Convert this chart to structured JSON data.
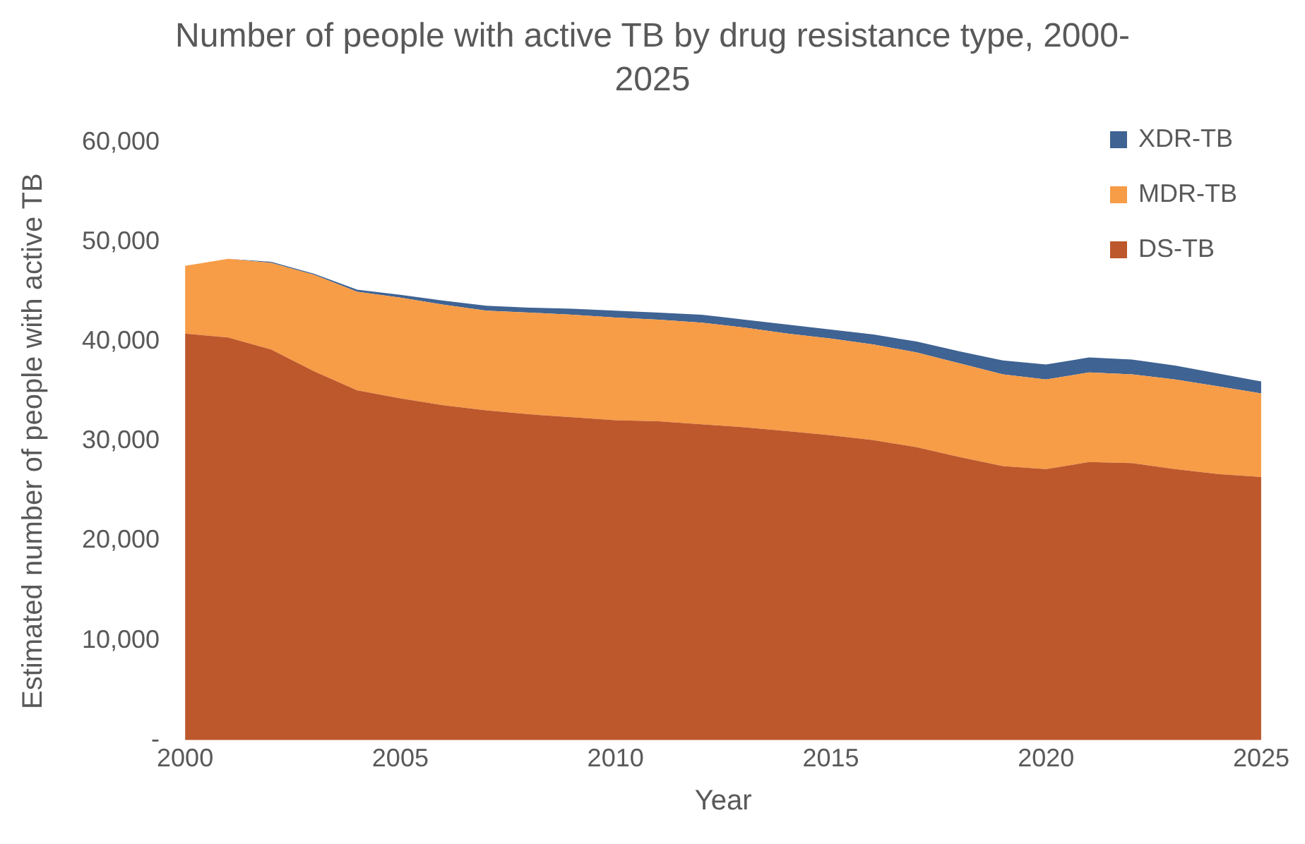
{
  "chart_data": {
    "type": "area",
    "title": "Number of people with active TB by drug resistance type, 2000-2025",
    "xlabel": "Year",
    "ylabel": "Estimated number of people with active TB",
    "stacked": true,
    "x": [
      2000,
      2001,
      2002,
      2003,
      2004,
      2005,
      2006,
      2007,
      2008,
      2009,
      2010,
      2011,
      2012,
      2013,
      2014,
      2015,
      2016,
      2017,
      2018,
      2019,
      2020,
      2021,
      2022,
      2023,
      2024,
      2025
    ],
    "series": [
      {
        "name": "DS-TB",
        "color": "#bd582c",
        "values": [
          40800,
          40400,
          39200,
          37000,
          35100,
          34300,
          33600,
          33100,
          32700,
          32400,
          32100,
          32000,
          31700,
          31400,
          31000,
          30600,
          30100,
          29400,
          28400,
          27500,
          27200,
          27900,
          27800,
          27200,
          26700,
          26400
        ]
      },
      {
        "name": "MDR-TB",
        "color": "#f79c47",
        "values": [
          6800,
          7900,
          8700,
          9700,
          9900,
          10100,
          10100,
          10000,
          10200,
          10300,
          10300,
          10200,
          10200,
          10000,
          9800,
          9700,
          9600,
          9500,
          9400,
          9200,
          9000,
          9000,
          8900,
          9000,
          8800,
          8400
        ]
      },
      {
        "name": "XDR-TB",
        "color": "#3f6393",
        "values": [
          0,
          0,
          100,
          100,
          200,
          300,
          400,
          500,
          500,
          600,
          700,
          700,
          800,
          800,
          900,
          900,
          1000,
          1100,
          1200,
          1400,
          1500,
          1500,
          1500,
          1400,
          1300,
          1200
        ]
      }
    ],
    "xlim": [
      2000,
      2025
    ],
    "xticks": [
      2000,
      2005,
      2010,
      2015,
      2020,
      2025
    ],
    "ylim": [
      0,
      60000
    ],
    "yticks": [
      {
        "value": 0,
        "label": "-"
      },
      {
        "value": 10000,
        "label": "10,000"
      },
      {
        "value": 20000,
        "label": "20,000"
      },
      {
        "value": 30000,
        "label": "30,000"
      },
      {
        "value": 40000,
        "label": "40,000"
      },
      {
        "value": 50000,
        "label": "50,000"
      },
      {
        "value": 60000,
        "label": "60,000"
      }
    ],
    "grid": false,
    "legend": "top right"
  }
}
